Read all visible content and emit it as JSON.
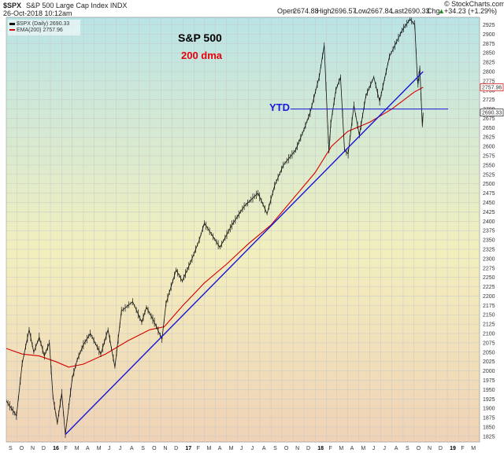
{
  "header": {
    "symbol": "$SPX",
    "name": "S&P 500 Large Cap Index INDX",
    "datetime": "26-Oct-2018 10:12am",
    "open_label": "Open",
    "open": "2674.88",
    "high_label": "High",
    "high": "2696.57",
    "low_label": "Low",
    "low": "2667.84",
    "last_label": "Last",
    "last": "2690.33",
    "chg_label": "Chg",
    "chg": "+34.23 (+1.29%)",
    "chg_arrow": "▲",
    "brand": "© StockCharts.com"
  },
  "legend": {
    "price": "$SPX (Daily) 2690.33",
    "ema": "EMA(200) 2757.96"
  },
  "annotations": {
    "title": "S&P 500",
    "dma": "200 dma",
    "ytd": "YTD"
  },
  "colors": {
    "price": "#111111",
    "ema": "#d40000",
    "trend": "#1616d8",
    "ytd": "#1616d8",
    "bg_top": "#b9e4e6",
    "bg_mid": "#f2efbd",
    "bg_bottom": "#f0d2b6"
  },
  "chart_data": {
    "type": "line",
    "title": "S&P 500",
    "ylim": [
      1810,
      2945
    ],
    "y_ticks": [
      1825,
      1850,
      1875,
      1900,
      1925,
      1950,
      1975,
      2000,
      2025,
      2050,
      2075,
      2100,
      2125,
      2150,
      2175,
      2200,
      2225,
      2250,
      2275,
      2300,
      2325,
      2350,
      2375,
      2400,
      2425,
      2450,
      2475,
      2500,
      2525,
      2550,
      2575,
      2600,
      2625,
      2650,
      2675,
      2700,
      2725,
      2750,
      2775,
      2800,
      2825,
      2850,
      2875,
      2900,
      2925
    ],
    "y_price_tags": [
      "2757.96",
      "2690.33"
    ],
    "x_ticks": [
      {
        "label": "S",
        "bold": false
      },
      {
        "label": "O",
        "bold": false
      },
      {
        "label": "N",
        "bold": false
      },
      {
        "label": "D",
        "bold": false
      },
      {
        "label": "16",
        "bold": true
      },
      {
        "label": "F",
        "bold": false
      },
      {
        "label": "M",
        "bold": false
      },
      {
        "label": "A",
        "bold": false
      },
      {
        "label": "M",
        "bold": false
      },
      {
        "label": "J",
        "bold": false
      },
      {
        "label": "J",
        "bold": false
      },
      {
        "label": "A",
        "bold": false
      },
      {
        "label": "S",
        "bold": false
      },
      {
        "label": "O",
        "bold": false
      },
      {
        "label": "N",
        "bold": false
      },
      {
        "label": "D",
        "bold": false
      },
      {
        "label": "17",
        "bold": true
      },
      {
        "label": "F",
        "bold": false
      },
      {
        "label": "M",
        "bold": false
      },
      {
        "label": "A",
        "bold": false
      },
      {
        "label": "M",
        "bold": false
      },
      {
        "label": "J",
        "bold": false
      },
      {
        "label": "J",
        "bold": false
      },
      {
        "label": "A",
        "bold": false
      },
      {
        "label": "S",
        "bold": false
      },
      {
        "label": "O",
        "bold": false
      },
      {
        "label": "N",
        "bold": false
      },
      {
        "label": "D",
        "bold": false
      },
      {
        "label": "18",
        "bold": true
      },
      {
        "label": "F",
        "bold": false
      },
      {
        "label": "M",
        "bold": false
      },
      {
        "label": "A",
        "bold": false
      },
      {
        "label": "M",
        "bold": false
      },
      {
        "label": "J",
        "bold": false
      },
      {
        "label": "J",
        "bold": false
      },
      {
        "label": "A",
        "bold": false
      },
      {
        "label": "S",
        "bold": false
      },
      {
        "label": "O",
        "bold": false
      },
      {
        "label": "N",
        "bold": false
      },
      {
        "label": "D",
        "bold": false
      },
      {
        "label": "19",
        "bold": true
      },
      {
        "label": "F",
        "bold": false
      },
      {
        "label": "M",
        "bold": false
      }
    ],
    "price_series": {
      "name": "$SPX (Daily)",
      "x": [
        "2015-09-01",
        "2015-09-29",
        "2015-10-15",
        "2015-11-03",
        "2015-11-16",
        "2015-12-01",
        "2015-12-15",
        "2015-12-29",
        "2016-01-08",
        "2016-01-20",
        "2016-02-01",
        "2016-02-11",
        "2016-03-01",
        "2016-03-15",
        "2016-04-01",
        "2016-04-20",
        "2016-05-19",
        "2016-06-08",
        "2016-06-27",
        "2016-07-15",
        "2016-08-15",
        "2016-09-09",
        "2016-09-22",
        "2016-10-14",
        "2016-11-04",
        "2016-11-15",
        "2016-12-13",
        "2016-12-30",
        "2017-01-26",
        "2017-02-15",
        "2017-03-01",
        "2017-04-13",
        "2017-05-16",
        "2017-06-19",
        "2017-07-27",
        "2017-08-10",
        "2017-08-21",
        "2017-09-11",
        "2017-10-05",
        "2017-11-08",
        "2017-12-01",
        "2017-12-18",
        "2018-01-12",
        "2018-01-26",
        "2018-02-05",
        "2018-02-08",
        "2018-02-13",
        "2018-02-27",
        "2018-03-12",
        "2018-03-23",
        "2018-04-02",
        "2018-04-18",
        "2018-05-03",
        "2018-05-21",
        "2018-06-12",
        "2018-06-28",
        "2018-07-25",
        "2018-08-29",
        "2018-09-20",
        "2018-10-03",
        "2018-10-10",
        "2018-10-12",
        "2018-10-17",
        "2018-10-24",
        "2018-10-26"
      ],
      "y": [
        1920,
        1880,
        2020,
        2110,
        2050,
        2090,
        2040,
        2075,
        1930,
        1860,
        1940,
        1830,
        1980,
        2030,
        2070,
        2100,
        2045,
        2110,
        2010,
        2160,
        2185,
        2130,
        2170,
        2130,
        2085,
        2180,
        2270,
        2240,
        2300,
        2350,
        2395,
        2330,
        2390,
        2440,
        2475,
        2445,
        2420,
        2495,
        2550,
        2590,
        2645,
        2690,
        2785,
        2870,
        2650,
        2585,
        2660,
        2750,
        2785,
        2590,
        2580,
        2710,
        2630,
        2735,
        2785,
        2720,
        2840,
        2910,
        2940,
        2925,
        2785,
        2765,
        2810,
        2655,
        2690
      ]
    },
    "ema_series": {
      "name": "EMA(200)",
      "x": [
        "2015-09-01",
        "2015-10-15",
        "2015-12-01",
        "2016-01-15",
        "2016-02-20",
        "2016-04-01",
        "2016-06-01",
        "2016-08-01",
        "2016-10-01",
        "2016-11-10",
        "2017-01-01",
        "2017-03-01",
        "2017-05-01",
        "2017-07-01",
        "2017-09-01",
        "2017-11-01",
        "2018-01-01",
        "2018-02-15",
        "2018-04-01",
        "2018-06-01",
        "2018-08-01",
        "2018-10-01",
        "2018-10-26"
      ],
      "y": [
        2060,
        2045,
        2040,
        2025,
        2010,
        2018,
        2045,
        2080,
        2110,
        2118,
        2175,
        2235,
        2285,
        2340,
        2390,
        2460,
        2530,
        2600,
        2640,
        2665,
        2700,
        2745,
        2758
      ]
    },
    "trendline": {
      "name": "Trendline",
      "x": [
        "2016-02-11",
        "2018-10-26"
      ],
      "y": [
        1830,
        2800
      ]
    },
    "ytd_line": {
      "name": "YTD",
      "x": [
        "2018-01-02",
        "2018-12-31"
      ],
      "y": [
        2700,
        2700
      ]
    }
  }
}
